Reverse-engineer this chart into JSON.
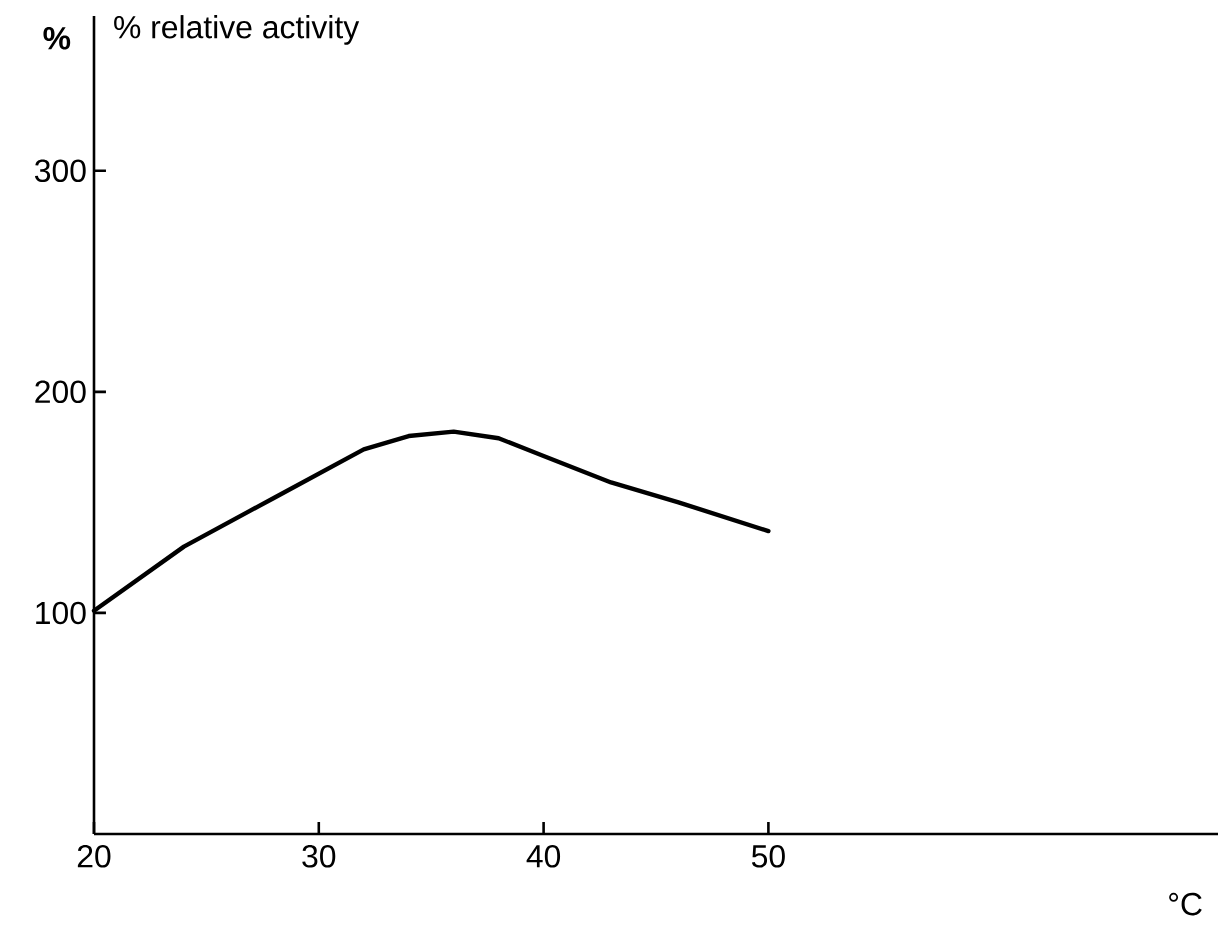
{
  "chart_data": {
    "type": "line",
    "title": "% relative activity",
    "ylabel": "%",
    "xlabel": "°C",
    "x": [
      20,
      24,
      28,
      32,
      34,
      36,
      38,
      40,
      43,
      46,
      50
    ],
    "series": [
      {
        "color": "#000000",
        "line_style": "solid",
        "values": [
          101,
          130,
          152,
          174,
          180,
          182,
          179,
          171,
          159,
          150,
          137
        ]
      }
    ],
    "xlim": [
      20,
      70
    ],
    "ylim": [
      0,
      370
    ],
    "xticks": [
      20,
      30,
      40,
      50
    ],
    "yticks": [
      100,
      200,
      300
    ]
  }
}
